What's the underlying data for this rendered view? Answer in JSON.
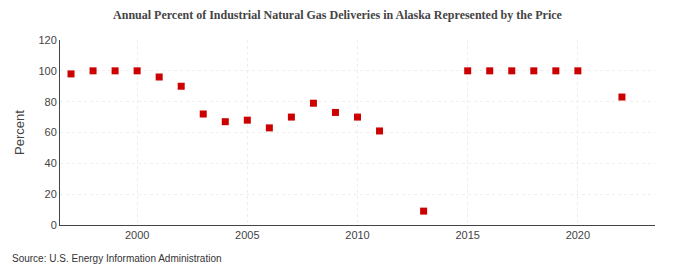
{
  "chart_data": {
    "type": "scatter",
    "title": "Annual Percent of Industrial Natural Gas Deliveries in Alaska Represented by the Price",
    "ylabel": "Percent",
    "annotations": [
      "Source: U.S. Energy Information Administration"
    ],
    "x": [
      1997,
      1998,
      1999,
      2000,
      2001,
      2002,
      2003,
      2004,
      2005,
      2006,
      2007,
      2008,
      2009,
      2010,
      2011,
      2013,
      2015,
      2016,
      2017,
      2018,
      2019,
      2020,
      2022
    ],
    "values": [
      98,
      100,
      100,
      100,
      96,
      90,
      72,
      67,
      68,
      63,
      70,
      79,
      73,
      70,
      61,
      9,
      100,
      100,
      100,
      100,
      100,
      100,
      83
    ],
    "color": "#cc0000",
    "marker": "square",
    "xlim": [
      1996.5,
      2023.5
    ],
    "ylim": [
      0,
      120
    ],
    "xticks": [
      2000,
      2005,
      2010,
      2015,
      2020
    ],
    "yticks": [
      0,
      20,
      40,
      60,
      80,
      100,
      120
    ],
    "grid": true
  }
}
